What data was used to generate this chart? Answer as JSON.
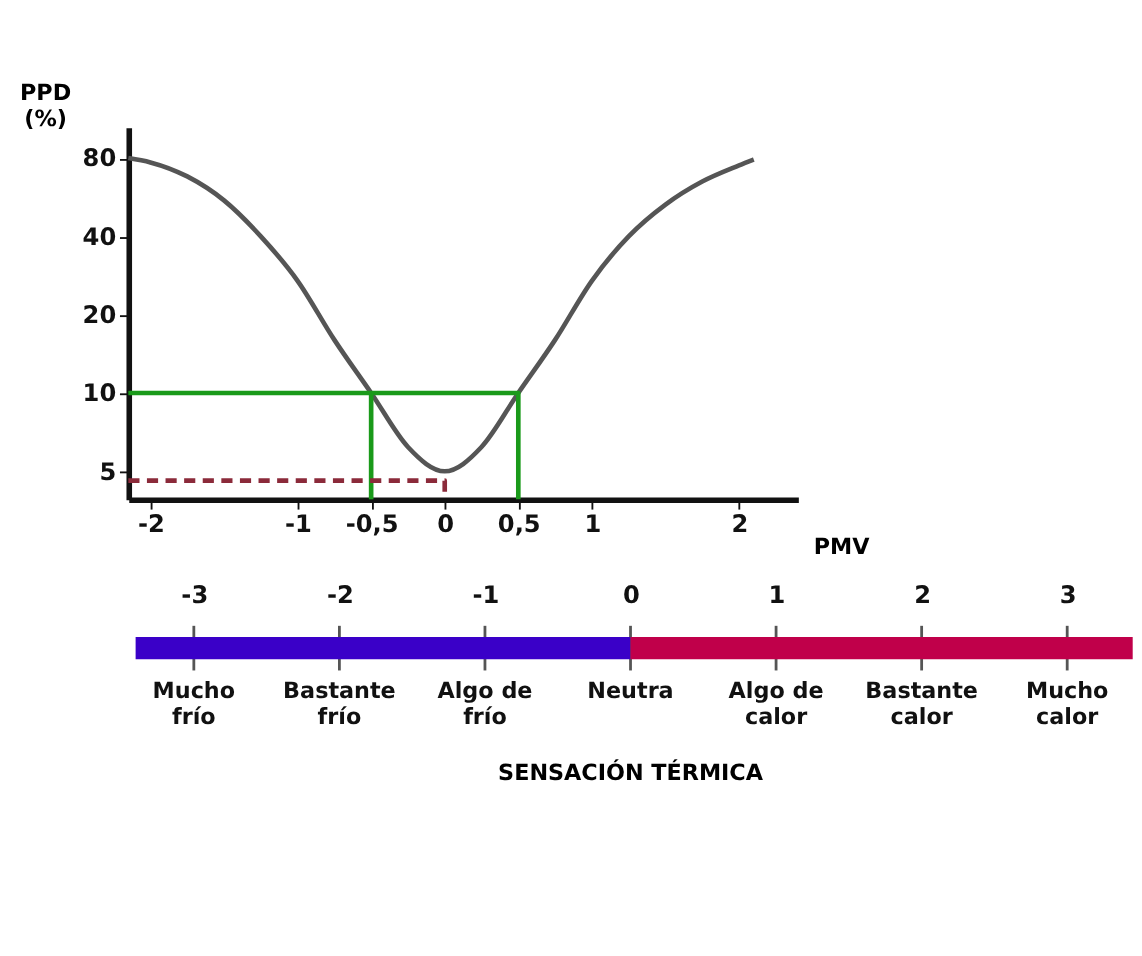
{
  "chart_data": [
    {
      "type": "line",
      "xlabel": "PMV",
      "ylabel": "PPD (%)",
      "xlim": [
        -2.15,
        2.4
      ],
      "ylim": [
        3.9,
        105
      ],
      "log": "y",
      "grid": false,
      "legend": false,
      "xticks": [
        {
          "value": -2,
          "label": "-2"
        },
        {
          "value": -1,
          "label": "-1"
        },
        {
          "value": -0.5,
          "label": "-0,5"
        },
        {
          "value": 0,
          "label": "0"
        },
        {
          "value": 0.5,
          "label": "0,5"
        },
        {
          "value": 1,
          "label": "1"
        },
        {
          "value": 2,
          "label": "2"
        }
      ],
      "yticks": [
        5,
        10,
        20,
        40,
        80
      ],
      "series": [
        {
          "color": "#555555",
          "line_style": "solid",
          "x": [
            -2.15,
            -2,
            -1.75,
            -1.5,
            -1.25,
            -1,
            -0.75,
            -0.5,
            -0.25,
            0,
            0.25,
            0.5,
            0.75,
            1,
            1.25,
            1.5,
            1.75,
            2,
            2.1
          ],
          "values": [
            80,
            77,
            68,
            55,
            40,
            27,
            16,
            10,
            6.2,
            5,
            6.2,
            10,
            16,
            27,
            40,
            53,
            65,
            75,
            79
          ]
        },
        {
          "color": "#1a9a1a",
          "line_style": "solid",
          "x": [
            -2.15,
            0.5,
            0.5
          ],
          "values": [
            10,
            10,
            3.9
          ]
        },
        {
          "color": "#1a9a1a",
          "line_style": "solid",
          "x": [
            -0.5,
            -0.5
          ],
          "values": [
            10,
            3.9
          ]
        },
        {
          "color": "#8b2a3a",
          "line_style": "dashed",
          "x": [
            -2.15,
            0,
            0
          ],
          "values": [
            4.6,
            4.6,
            3.9
          ]
        }
      ]
    },
    {
      "type": "bar",
      "orientation": "horizontal",
      "xlabel": "SENSACIÓN TÉRMICA",
      "xlim": [
        -3.45,
        3.45
      ],
      "xticks": [
        -3,
        -2,
        -1,
        0,
        1,
        2,
        3
      ],
      "tick_labels": "x",
      "categories": [
        null
      ],
      "stacked": true,
      "grid": "x",
      "series": [
        {
          "color": "#3a00c8",
          "values": [
            -3.4
          ]
        },
        {
          "color": "#c0004a",
          "values": [
            3.45
          ]
        }
      ],
      "annotations": [
        "Mucho frío",
        "Bastante frío",
        "Algo de frío",
        "Neutra",
        "Algo de calor",
        "Bastante calor",
        "Mucho calor"
      ]
    }
  ]
}
